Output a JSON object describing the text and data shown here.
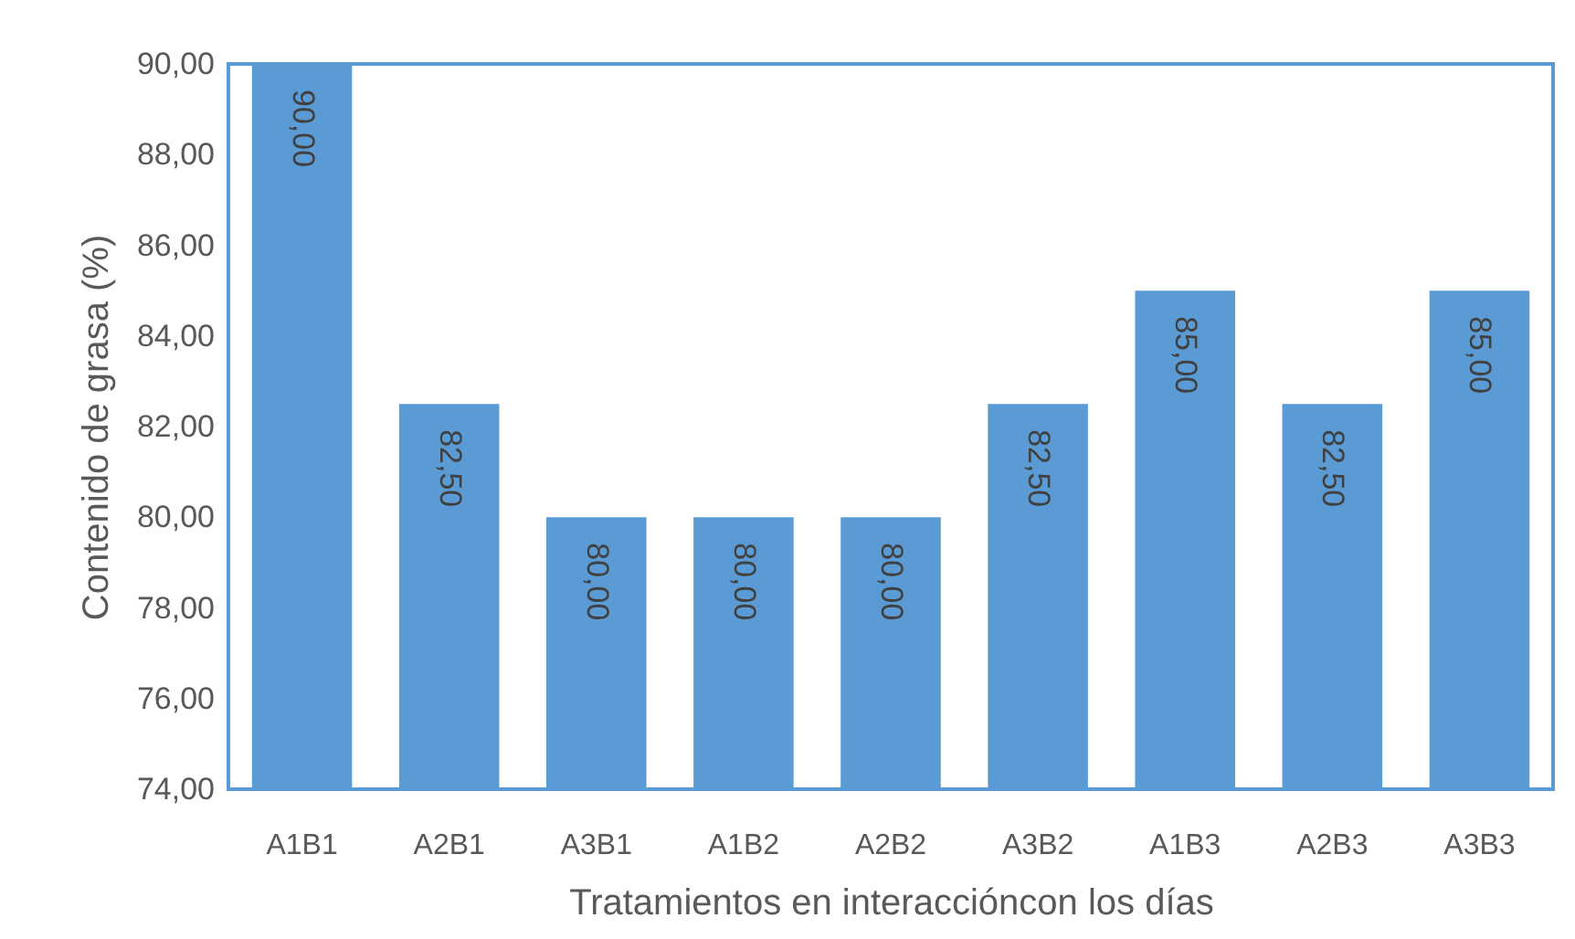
{
  "chart_data": {
    "type": "bar",
    "xlabel": "Tratamientos en interaccióncon los días",
    "ylabel": "Contenido de grasa (%)",
    "categories": [
      "A1B1",
      "A2B1",
      "A3B1",
      "A1B2",
      "A2B2",
      "A3B2",
      "A1B3",
      "A2B3",
      "A3B3"
    ],
    "values": [
      90,
      82.5,
      80,
      80,
      80,
      82.5,
      85,
      82.5,
      85
    ],
    "value_labels": [
      "90,00",
      "82,50",
      "80,00",
      "80,00",
      "80,00",
      "82,50",
      "85,00",
      "82,50",
      "85,00"
    ],
    "color": "#5b9bd5",
    "ylim": [
      74,
      90
    ],
    "yticks": [
      {
        "value": 74,
        "label": "74,00"
      },
      {
        "value": 76,
        "label": "76,00"
      },
      {
        "value": 78,
        "label": "78,00"
      },
      {
        "value": 80,
        "label": "80,00"
      },
      {
        "value": 82,
        "label": "82,00"
      },
      {
        "value": 84,
        "label": "84,00"
      },
      {
        "value": 86,
        "label": "86,00"
      },
      {
        "value": 88,
        "label": "88,00"
      },
      {
        "value": 90,
        "label": "90,00"
      }
    ]
  }
}
